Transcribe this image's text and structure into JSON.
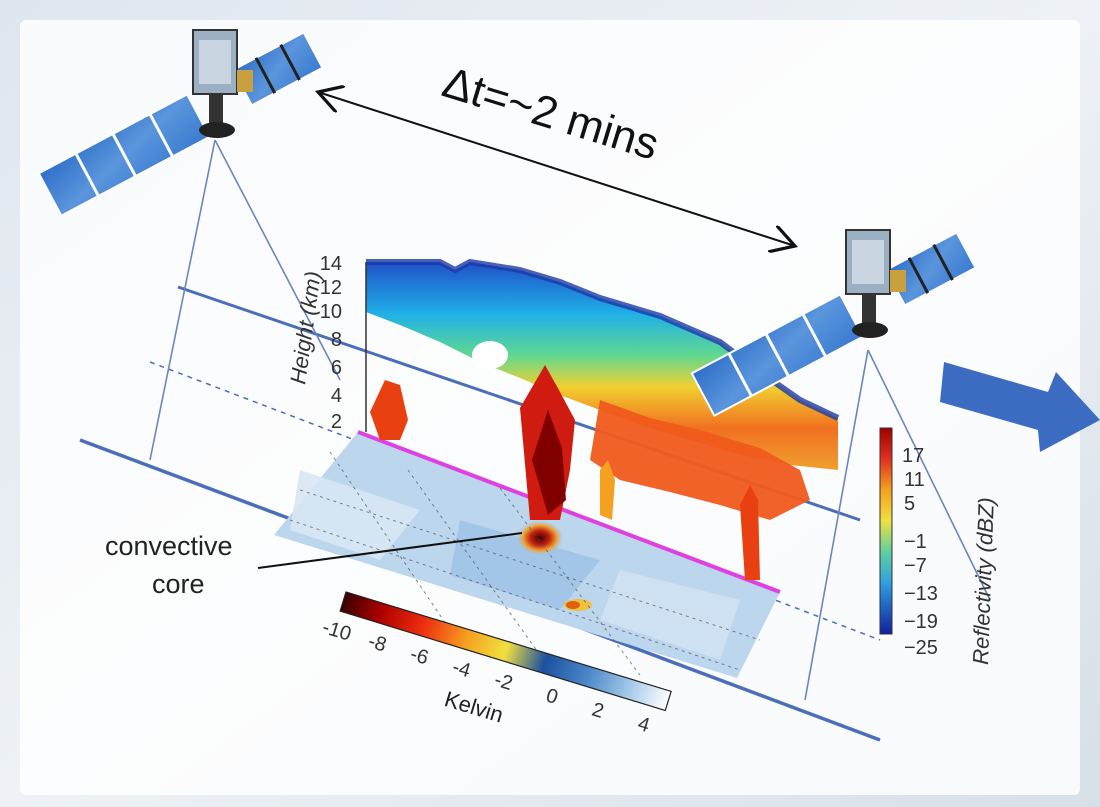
{
  "time_gap_label": "Δt=~2 mins",
  "annotation": {
    "line1": "convective",
    "line2": "core"
  },
  "radar_panel": {
    "y_axis_label": "Height (km)",
    "y_ticks": [
      "14",
      "12",
      "10",
      "8",
      "6",
      "4",
      "2"
    ],
    "colorbar_label": "Reflectivity (dBZ)",
    "colorbar_ticks": [
      "17",
      "11",
      "5",
      "−1",
      "−7",
      "−13",
      "−19",
      "−25"
    ]
  },
  "temperature_panel": {
    "colorbar_label": "Kelvin",
    "colorbar_ticks": [
      "-10",
      "-8",
      "-6",
      "-4",
      "-2",
      "0",
      "2",
      "4"
    ]
  },
  "colors": {
    "orbit_line": "#4a6fb8",
    "scan_line": "#e040e0",
    "arrow": "#3c6cc2",
    "solar_panel": "#4a85d0"
  },
  "icons": [
    "satellite-icon",
    "direction-arrow-icon",
    "double-headed-arrow-icon"
  ]
}
